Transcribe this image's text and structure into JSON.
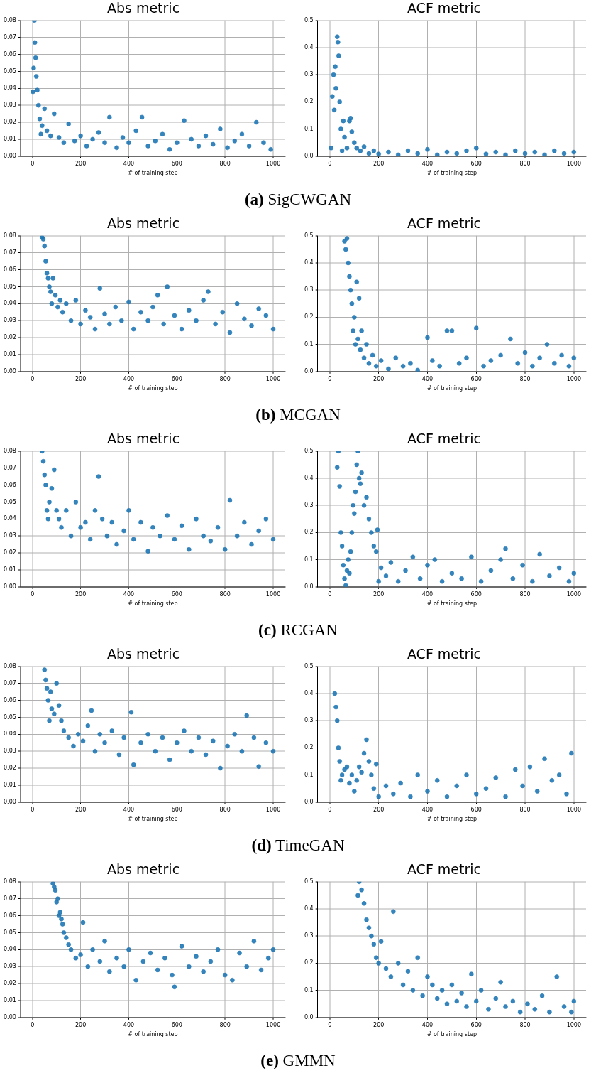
{
  "chart_data": [
    {
      "type": "scatter",
      "title": "Abs metric",
      "xlabel": "# of training step",
      "annotations": [
        "(a) SigCWGAN"
      ],
      "color": "#1f77b4",
      "marker": "circle",
      "grid": true,
      "xlim": [
        -50,
        1050
      ],
      "xticks": [
        0,
        200,
        400,
        600,
        800,
        1000
      ],
      "ylim": [
        0,
        0.08
      ],
      "yticks": [
        {
          "value": 0,
          "label": "0.00"
        },
        {
          "value": 0.01,
          "label": "0.01"
        },
        {
          "value": 0.02,
          "label": "0.02"
        },
        {
          "value": 0.03,
          "label": "0.03"
        },
        {
          "value": 0.04,
          "label": "0.04"
        },
        {
          "value": 0.05,
          "label": "0.05"
        },
        {
          "value": 0.06,
          "label": "0.06"
        },
        {
          "value": 0.07,
          "label": "0.07"
        },
        {
          "value": 0.08,
          "label": "0.08"
        }
      ],
      "x": [
        2,
        5,
        8,
        10,
        13,
        16,
        20,
        25,
        30,
        35,
        40,
        50,
        60,
        75,
        90,
        110,
        130,
        150,
        175,
        200,
        225,
        250,
        275,
        300,
        320,
        350,
        375,
        400,
        430,
        455,
        480,
        510,
        540,
        570,
        600,
        630,
        660,
        690,
        720,
        750,
        780,
        810,
        840,
        870,
        900,
        930,
        960,
        990
      ],
      "values": [
        0.038,
        0.052,
        0.08,
        0.067,
        0.058,
        0.047,
        0.039,
        0.03,
        0.022,
        0.013,
        0.018,
        0.028,
        0.015,
        0.012,
        0.025,
        0.011,
        0.008,
        0.019,
        0.009,
        0.012,
        0.006,
        0.01,
        0.014,
        0.008,
        0.023,
        0.005,
        0.011,
        0.008,
        0.015,
        0.023,
        0.006,
        0.009,
        0.013,
        0.004,
        0.008,
        0.021,
        0.01,
        0.006,
        0.012,
        0.007,
        0.016,
        0.005,
        0.009,
        0.013,
        0.006,
        0.02,
        0.008,
        0.004
      ]
    },
    {
      "type": "scatter",
      "title": "ACF metric",
      "xlabel": "# of training step",
      "color": "#1f77b4",
      "marker": "circle",
      "grid": true,
      "xlim": [
        -50,
        1050
      ],
      "xticks": [
        0,
        200,
        400,
        600,
        800,
        1000
      ],
      "ylim": [
        0,
        0.5
      ],
      "yticks": [
        {
          "value": 0,
          "label": "0.0"
        },
        0.1,
        0.2,
        0.3,
        0.4,
        0.5
      ],
      "x": [
        5,
        10,
        15,
        18,
        22,
        25,
        30,
        33,
        36,
        40,
        45,
        50,
        55,
        60,
        70,
        80,
        85,
        90,
        100,
        110,
        125,
        140,
        160,
        180,
        200,
        240,
        280,
        320,
        360,
        400,
        440,
        480,
        520,
        560,
        600,
        640,
        680,
        720,
        760,
        800,
        840,
        880,
        920,
        960,
        1000
      ],
      "values": [
        0.03,
        0.22,
        0.3,
        0.17,
        0.33,
        0.25,
        0.44,
        0.42,
        0.37,
        0.2,
        0.1,
        0.02,
        0.13,
        0.07,
        0.03,
        0.13,
        0.14,
        0.09,
        0.05,
        0.03,
        0.02,
        0.035,
        0.01,
        0.02,
        0.008,
        0.015,
        0.005,
        0.02,
        0.01,
        0.025,
        0.005,
        0.015,
        0.01,
        0.02,
        0.03,
        0.008,
        0.015,
        0.005,
        0.02,
        0.01,
        0.015,
        0.005,
        0.02,
        0.01,
        0.015
      ]
    },
    {
      "type": "scatter",
      "title": "Abs metric",
      "xlabel": "# of training step",
      "annotations": [
        "(b) MCGAN"
      ],
      "color": "#1f77b4",
      "marker": "circle",
      "grid": true,
      "xlim": [
        -50,
        1050
      ],
      "xticks": [
        0,
        200,
        400,
        600,
        800,
        1000
      ],
      "ylim": [
        0,
        0.08
      ],
      "yticks": [
        {
          "value": 0,
          "label": "0.00"
        },
        {
          "value": 0.01,
          "label": "0.01"
        },
        {
          "value": 0.02,
          "label": "0.02"
        },
        {
          "value": 0.03,
          "label": "0.03"
        },
        {
          "value": 0.04,
          "label": "0.04"
        },
        {
          "value": 0.05,
          "label": "0.05"
        },
        {
          "value": 0.06,
          "label": "0.06"
        },
        {
          "value": 0.07,
          "label": "0.07"
        },
        {
          "value": 0.08,
          "label": "0.08"
        }
      ],
      "x": [
        40,
        45,
        50,
        55,
        60,
        65,
        70,
        75,
        80,
        85,
        95,
        105,
        115,
        125,
        140,
        160,
        180,
        200,
        220,
        240,
        260,
        280,
        300,
        320,
        345,
        370,
        400,
        420,
        450,
        480,
        500,
        520,
        545,
        560,
        590,
        620,
        650,
        680,
        710,
        730,
        760,
        790,
        820,
        850,
        880,
        910,
        940,
        970,
        1000
      ],
      "values": [
        0.079,
        0.078,
        0.074,
        0.065,
        0.058,
        0.055,
        0.05,
        0.047,
        0.04,
        0.055,
        0.045,
        0.038,
        0.042,
        0.035,
        0.04,
        0.03,
        0.042,
        0.028,
        0.036,
        0.032,
        0.025,
        0.049,
        0.034,
        0.028,
        0.038,
        0.03,
        0.041,
        0.025,
        0.035,
        0.03,
        0.038,
        0.045,
        0.028,
        0.05,
        0.033,
        0.025,
        0.036,
        0.03,
        0.042,
        0.047,
        0.028,
        0.035,
        0.023,
        0.04,
        0.031,
        0.027,
        0.037,
        0.033,
        0.025
      ]
    },
    {
      "type": "scatter",
      "title": "ACF metric",
      "xlabel": "# of training step",
      "color": "#1f77b4",
      "marker": "circle",
      "grid": true,
      "xlim": [
        -50,
        1050
      ],
      "xticks": [
        0,
        200,
        400,
        600,
        800,
        1000
      ],
      "ylim": [
        0,
        0.5
      ],
      "yticks": [
        {
          "value": 0,
          "label": "0.0"
        },
        0.1,
        0.2,
        0.3,
        0.4,
        0.5
      ],
      "x": [
        60,
        65,
        70,
        75,
        80,
        85,
        90,
        95,
        100,
        105,
        110,
        115,
        120,
        125,
        130,
        140,
        150,
        160,
        175,
        190,
        210,
        240,
        270,
        300,
        330,
        360,
        400,
        420,
        450,
        480,
        500,
        530,
        560,
        600,
        630,
        660,
        700,
        740,
        770,
        800,
        830,
        860,
        890,
        920,
        950,
        980,
        1000
      ],
      "values": [
        0.48,
        0.45,
        0.49,
        0.4,
        0.35,
        0.3,
        0.25,
        0.15,
        0.2,
        0.1,
        0.33,
        0.12,
        0.27,
        0.08,
        0.15,
        0.05,
        0.1,
        0.03,
        0.06,
        0.02,
        0.04,
        0.01,
        0.05,
        0.02,
        0.03,
        0.005,
        0.125,
        0.04,
        0.02,
        0.15,
        0.15,
        0.03,
        0.05,
        0.16,
        0.02,
        0.04,
        0.06,
        0.12,
        0.03,
        0.07,
        0.02,
        0.05,
        0.1,
        0.03,
        0.06,
        0.02,
        0.05
      ]
    },
    {
      "type": "scatter",
      "title": "Abs metric",
      "xlabel": "# of training step",
      "annotations": [
        "(c) RCGAN"
      ],
      "color": "#1f77b4",
      "marker": "circle",
      "grid": true,
      "xlim": [
        -50,
        1050
      ],
      "xticks": [
        0,
        200,
        400,
        600,
        800,
        1000
      ],
      "ylim": [
        0,
        0.08
      ],
      "yticks": [
        {
          "value": 0,
          "label": "0.00"
        },
        {
          "value": 0.01,
          "label": "0.01"
        },
        {
          "value": 0.02,
          "label": "0.02"
        },
        {
          "value": 0.03,
          "label": "0.03"
        },
        {
          "value": 0.04,
          "label": "0.04"
        },
        {
          "value": 0.05,
          "label": "0.05"
        },
        {
          "value": 0.06,
          "label": "0.06"
        },
        {
          "value": 0.07,
          "label": "0.07"
        },
        {
          "value": 0.08,
          "label": "0.08"
        }
      ],
      "x": [
        40,
        45,
        50,
        55,
        60,
        65,
        70,
        80,
        90,
        100,
        110,
        120,
        140,
        160,
        180,
        200,
        220,
        240,
        260,
        275,
        290,
        310,
        330,
        350,
        380,
        400,
        420,
        450,
        480,
        500,
        530,
        560,
        590,
        620,
        650,
        680,
        710,
        740,
        770,
        800,
        820,
        850,
        880,
        910,
        940,
        970,
        1000
      ],
      "values": [
        0.08,
        0.074,
        0.066,
        0.06,
        0.045,
        0.04,
        0.05,
        0.058,
        0.069,
        0.045,
        0.04,
        0.035,
        0.045,
        0.03,
        0.05,
        0.035,
        0.038,
        0.028,
        0.045,
        0.065,
        0.04,
        0.03,
        0.038,
        0.025,
        0.033,
        0.045,
        0.028,
        0.038,
        0.021,
        0.035,
        0.03,
        0.042,
        0.028,
        0.036,
        0.022,
        0.04,
        0.03,
        0.027,
        0.035,
        0.022,
        0.051,
        0.03,
        0.038,
        0.025,
        0.033,
        0.04,
        0.028
      ]
    },
    {
      "type": "scatter",
      "title": "ACF metric",
      "xlabel": "# of training step",
      "color": "#1f77b4",
      "marker": "circle",
      "grid": true,
      "xlim": [
        -50,
        1050
      ],
      "xticks": [
        0,
        200,
        400,
        600,
        800,
        1000
      ],
      "ylim": [
        0,
        0.5
      ],
      "yticks": [
        {
          "value": 0,
          "label": "0.0"
        },
        0.1,
        0.2,
        0.3,
        0.4,
        0.5
      ],
      "x": [
        30,
        35,
        40,
        45,
        50,
        55,
        60,
        65,
        70,
        75,
        80,
        85,
        90,
        95,
        100,
        105,
        110,
        115,
        120,
        125,
        130,
        140,
        150,
        160,
        170,
        180,
        190,
        195,
        200,
        210,
        230,
        250,
        280,
        310,
        340,
        370,
        400,
        430,
        460,
        500,
        540,
        580,
        620,
        660,
        700,
        720,
        750,
        790,
        830,
        860,
        900,
        940,
        980,
        1000
      ],
      "values": [
        0.44,
        0.5,
        0.37,
        0.2,
        0.15,
        0.08,
        0.03,
        0.005,
        0.06,
        0.1,
        0.05,
        0.13,
        0.2,
        0.3,
        0.27,
        0.35,
        0.45,
        0.5,
        0.4,
        0.38,
        0.42,
        0.3,
        0.33,
        0.25,
        0.2,
        0.15,
        0.13,
        0.21,
        0.02,
        0.07,
        0.04,
        0.09,
        0.02,
        0.06,
        0.11,
        0.03,
        0.08,
        0.1,
        0.02,
        0.05,
        0.03,
        0.11,
        0.02,
        0.06,
        0.1,
        0.14,
        0.03,
        0.08,
        0.02,
        0.12,
        0.04,
        0.07,
        0.02,
        0.05
      ]
    },
    {
      "type": "scatter",
      "title": "Abs metric",
      "xlabel": "# of training step",
      "annotations": [
        "(d) TimeGAN"
      ],
      "color": "#1f77b4",
      "marker": "circle",
      "grid": true,
      "xlim": [
        -50,
        1050
      ],
      "xticks": [
        0,
        200,
        400,
        600,
        800,
        1000
      ],
      "ylim": [
        0,
        0.08
      ],
      "yticks": [
        {
          "value": 0,
          "label": "0.00"
        },
        {
          "value": 0.01,
          "label": "0.01"
        },
        {
          "value": 0.02,
          "label": "0.02"
        },
        {
          "value": 0.03,
          "label": "0.03"
        },
        {
          "value": 0.04,
          "label": "0.04"
        },
        {
          "value": 0.05,
          "label": "0.05"
        },
        {
          "value": 0.06,
          "label": "0.06"
        },
        {
          "value": 0.07,
          "label": "0.07"
        },
        {
          "value": 0.08,
          "label": "0.08"
        }
      ],
      "x": [
        50,
        55,
        60,
        65,
        70,
        75,
        80,
        90,
        100,
        110,
        120,
        130,
        150,
        170,
        190,
        210,
        230,
        245,
        260,
        280,
        300,
        330,
        360,
        380,
        410,
        420,
        450,
        480,
        510,
        540,
        570,
        600,
        630,
        660,
        690,
        720,
        750,
        780,
        810,
        840,
        870,
        890,
        920,
        940,
        970,
        1000
      ],
      "values": [
        0.078,
        0.072,
        0.067,
        0.06,
        0.048,
        0.065,
        0.055,
        0.052,
        0.07,
        0.057,
        0.048,
        0.042,
        0.038,
        0.033,
        0.04,
        0.036,
        0.045,
        0.054,
        0.03,
        0.04,
        0.035,
        0.042,
        0.028,
        0.038,
        0.053,
        0.022,
        0.035,
        0.04,
        0.03,
        0.038,
        0.025,
        0.035,
        0.042,
        0.03,
        0.038,
        0.028,
        0.036,
        0.02,
        0.033,
        0.04,
        0.03,
        0.051,
        0.038,
        0.021,
        0.035,
        0.03
      ]
    },
    {
      "type": "scatter",
      "title": "ACF metric",
      "xlabel": "# of training step",
      "color": "#1f77b4",
      "marker": "circle",
      "grid": true,
      "xlim": [
        -50,
        1050
      ],
      "xticks": [
        0,
        200,
        400,
        600,
        800,
        1000
      ],
      "ylim": [
        0,
        0.5
      ],
      "yticks": [
        {
          "value": 0,
          "label": "0.0"
        },
        0.1,
        0.2,
        0.3,
        0.4,
        0.5
      ],
      "x": [
        20,
        25,
        30,
        35,
        40,
        45,
        50,
        60,
        70,
        80,
        90,
        100,
        110,
        120,
        130,
        140,
        150,
        160,
        170,
        180,
        190,
        200,
        230,
        260,
        290,
        330,
        360,
        400,
        440,
        480,
        520,
        560,
        600,
        640,
        680,
        720,
        760,
        790,
        820,
        850,
        880,
        910,
        940,
        970,
        990
      ],
      "values": [
        0.4,
        0.35,
        0.3,
        0.2,
        0.15,
        0.08,
        0.1,
        0.12,
        0.13,
        0.07,
        0.1,
        0.04,
        0.08,
        0.13,
        0.11,
        0.18,
        0.23,
        0.15,
        0.1,
        0.05,
        0.14,
        0.02,
        0.06,
        0.03,
        0.07,
        0.02,
        0.1,
        0.04,
        0.08,
        0.02,
        0.06,
        0.1,
        0.03,
        0.05,
        0.09,
        0.02,
        0.12,
        0.06,
        0.13,
        0.04,
        0.16,
        0.08,
        0.1,
        0.03,
        0.18
      ]
    },
    {
      "type": "scatter",
      "title": "Abs metric",
      "xlabel": "# of training step",
      "annotations": [
        "(e) GMMN"
      ],
      "color": "#1f77b4",
      "marker": "circle",
      "grid": true,
      "xlim": [
        -50,
        1050
      ],
      "xticks": [
        0,
        200,
        400,
        600,
        800,
        1000
      ],
      "ylim": [
        0,
        0.08
      ],
      "yticks": [
        {
          "value": 0,
          "label": "0.00"
        },
        {
          "value": 0.01,
          "label": "0.01"
        },
        {
          "value": 0.02,
          "label": "0.02"
        },
        {
          "value": 0.03,
          "label": "0.03"
        },
        {
          "value": 0.04,
          "label": "0.04"
        },
        {
          "value": 0.05,
          "label": "0.05"
        },
        {
          "value": 0.06,
          "label": "0.06"
        },
        {
          "value": 0.07,
          "label": "0.07"
        },
        {
          "value": 0.08,
          "label": "0.08"
        }
      ],
      "x": [
        85,
        90,
        95,
        100,
        105,
        110,
        115,
        120,
        125,
        130,
        140,
        150,
        160,
        180,
        200,
        210,
        230,
        250,
        280,
        300,
        320,
        350,
        380,
        400,
        430,
        460,
        490,
        520,
        550,
        580,
        590,
        620,
        650,
        680,
        710,
        740,
        770,
        800,
        830,
        860,
        890,
        920,
        950,
        980,
        1000
      ],
      "values": [
        0.079,
        0.077,
        0.075,
        0.068,
        0.07,
        0.06,
        0.062,
        0.058,
        0.055,
        0.05,
        0.047,
        0.043,
        0.04,
        0.035,
        0.037,
        0.056,
        0.03,
        0.04,
        0.033,
        0.045,
        0.027,
        0.035,
        0.03,
        0.04,
        0.022,
        0.033,
        0.038,
        0.028,
        0.035,
        0.025,
        0.018,
        0.042,
        0.03,
        0.036,
        0.027,
        0.033,
        0.04,
        0.025,
        0.022,
        0.038,
        0.03,
        0.045,
        0.028,
        0.035,
        0.04
      ]
    },
    {
      "type": "scatter",
      "title": "ACF metric",
      "xlabel": "# of training step",
      "color": "#1f77b4",
      "marker": "circle",
      "grid": true,
      "xlim": [
        -50,
        1050
      ],
      "xticks": [
        0,
        200,
        400,
        600,
        800,
        1000
      ],
      "ylim": [
        0,
        0.5
      ],
      "yticks": [
        {
          "value": 0,
          "label": "0.0"
        },
        0.1,
        0.2,
        0.3,
        0.4,
        0.5
      ],
      "x": [
        115,
        120,
        130,
        140,
        150,
        160,
        170,
        180,
        190,
        200,
        210,
        230,
        250,
        260,
        280,
        300,
        320,
        340,
        360,
        380,
        400,
        420,
        440,
        460,
        480,
        500,
        520,
        540,
        560,
        580,
        600,
        620,
        650,
        680,
        700,
        720,
        750,
        780,
        810,
        840,
        870,
        900,
        930,
        960,
        990,
        1000
      ],
      "values": [
        0.45,
        0.5,
        0.47,
        0.42,
        0.36,
        0.33,
        0.3,
        0.27,
        0.22,
        0.2,
        0.28,
        0.18,
        0.15,
        0.39,
        0.2,
        0.12,
        0.17,
        0.1,
        0.22,
        0.08,
        0.15,
        0.12,
        0.07,
        0.1,
        0.05,
        0.12,
        0.06,
        0.09,
        0.04,
        0.16,
        0.06,
        0.1,
        0.03,
        0.07,
        0.13,
        0.04,
        0.06,
        0.02,
        0.05,
        0.03,
        0.08,
        0.02,
        0.15,
        0.04,
        0.02,
        0.06
      ]
    }
  ]
}
